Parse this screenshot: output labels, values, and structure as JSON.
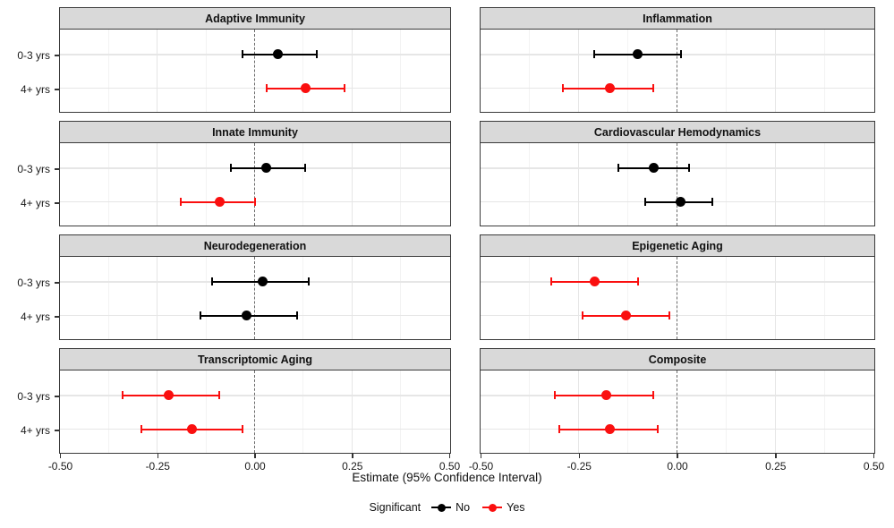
{
  "figure": {
    "background": "#ffffff",
    "panel_header_bg": "#d9d9d9",
    "panel_border": "#3a3a3a",
    "x_axis": {
      "title": "Estimate (95% Confidence Interval)",
      "tick_values": [
        -0.5,
        -0.25,
        0,
        0.25,
        0.5
      ],
      "tick_labels": [
        "-0.50",
        "-0.25",
        "0.00",
        "0.25",
        "0.50"
      ]
    },
    "y_axis": {
      "categories": [
        "0-3 yrs",
        "4+ yrs"
      ]
    },
    "legend": {
      "title": "Significant",
      "items": [
        {
          "label": "No",
          "color": "#000000"
        },
        {
          "label": "Yes",
          "color": "#fa0f0f"
        }
      ]
    }
  },
  "chart_data": {
    "type": "scatter",
    "subtype": "faceted-forest-plot-with-error-bars",
    "xlabel": "Estimate (95% Confidence Interval)",
    "x_range": [
      -0.5,
      0.5
    ],
    "x_ticks": [
      -0.5,
      -0.25,
      0,
      0.25,
      0.5
    ],
    "categories": [
      "0-3 yrs",
      "4+ yrs"
    ],
    "legend_title": "Significant",
    "legend_levels": {
      "No": "#000000",
      "Yes": "#fa0f0f"
    },
    "grid": {
      "major_every": 0.25,
      "minor_every": 0.125,
      "zero_reference_line": "dashed"
    },
    "panels": [
      {
        "title": "Adaptive Immunity",
        "points": [
          {
            "group": "0-3 yrs",
            "estimate": 0.06,
            "ci_low": -0.03,
            "ci_high": 0.16,
            "significant": "No"
          },
          {
            "group": "4+ yrs",
            "estimate": 0.13,
            "ci_low": 0.03,
            "ci_high": 0.23,
            "significant": "Yes"
          }
        ]
      },
      {
        "title": "Inflammation",
        "points": [
          {
            "group": "0-3 yrs",
            "estimate": -0.1,
            "ci_low": -0.21,
            "ci_high": 0.01,
            "significant": "No"
          },
          {
            "group": "4+ yrs",
            "estimate": -0.17,
            "ci_low": -0.29,
            "ci_high": -0.06,
            "significant": "Yes"
          }
        ]
      },
      {
        "title": "Innate Immunity",
        "points": [
          {
            "group": "0-3 yrs",
            "estimate": 0.03,
            "ci_low": -0.06,
            "ci_high": 0.13,
            "significant": "No"
          },
          {
            "group": "4+ yrs",
            "estimate": -0.09,
            "ci_low": -0.19,
            "ci_high": 0.0,
            "significant": "Yes"
          }
        ]
      },
      {
        "title": "Cardiovascular Hemodynamics",
        "points": [
          {
            "group": "0-3 yrs",
            "estimate": -0.06,
            "ci_low": -0.15,
            "ci_high": 0.03,
            "significant": "No"
          },
          {
            "group": "4+ yrs",
            "estimate": 0.01,
            "ci_low": -0.08,
            "ci_high": 0.09,
            "significant": "No"
          }
        ]
      },
      {
        "title": "Neurodegeneration",
        "points": [
          {
            "group": "0-3 yrs",
            "estimate": 0.02,
            "ci_low": -0.11,
            "ci_high": 0.14,
            "significant": "No"
          },
          {
            "group": "4+ yrs",
            "estimate": -0.02,
            "ci_low": -0.14,
            "ci_high": 0.11,
            "significant": "No"
          }
        ]
      },
      {
        "title": "Epigenetic Aging",
        "points": [
          {
            "group": "0-3 yrs",
            "estimate": -0.21,
            "ci_low": -0.32,
            "ci_high": -0.1,
            "significant": "Yes"
          },
          {
            "group": "4+ yrs",
            "estimate": -0.13,
            "ci_low": -0.24,
            "ci_high": -0.02,
            "significant": "Yes"
          }
        ]
      },
      {
        "title": "Transcriptomic Aging",
        "points": [
          {
            "group": "0-3 yrs",
            "estimate": -0.22,
            "ci_low": -0.34,
            "ci_high": -0.09,
            "significant": "Yes"
          },
          {
            "group": "4+ yrs",
            "estimate": -0.16,
            "ci_low": -0.29,
            "ci_high": -0.03,
            "significant": "Yes"
          }
        ]
      },
      {
        "title": "Composite",
        "points": [
          {
            "group": "0-3 yrs",
            "estimate": -0.18,
            "ci_low": -0.31,
            "ci_high": -0.06,
            "significant": "Yes"
          },
          {
            "group": "4+ yrs",
            "estimate": -0.17,
            "ci_low": -0.3,
            "ci_high": -0.05,
            "significant": "Yes"
          }
        ]
      }
    ]
  }
}
